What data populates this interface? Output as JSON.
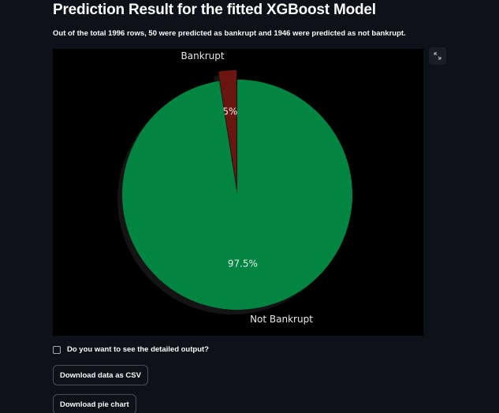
{
  "page": {
    "title": "Prediction Result for the fitted XGBoost Model",
    "summary": "Out of the total 1996 rows, 50 were predicted as bankrupt and 1946 were predicted as not bankrupt."
  },
  "chart_data": {
    "type": "pie",
    "title": "",
    "slices": [
      {
        "label": "Bankrupt",
        "value": 50,
        "pct_label": "2.5%",
        "color": "#6b1510",
        "exploded": true
      },
      {
        "label": "Not Bankrupt",
        "value": 1946,
        "pct_label": "97.5%",
        "color": "#028541",
        "exploded": false
      }
    ],
    "shadow": true,
    "background": "#000000"
  },
  "controls": {
    "detail_checkbox_label": "Do you want to see the detailed output?",
    "detail_checked": false,
    "download_csv_label": "Download data as CSV",
    "download_pie_label": "Download pie chart",
    "fullscreen_icon": "expand-icon"
  },
  "colors": {
    "background": "#0e1117",
    "text": "#fafafa",
    "button_border": "#4b4f5a"
  }
}
